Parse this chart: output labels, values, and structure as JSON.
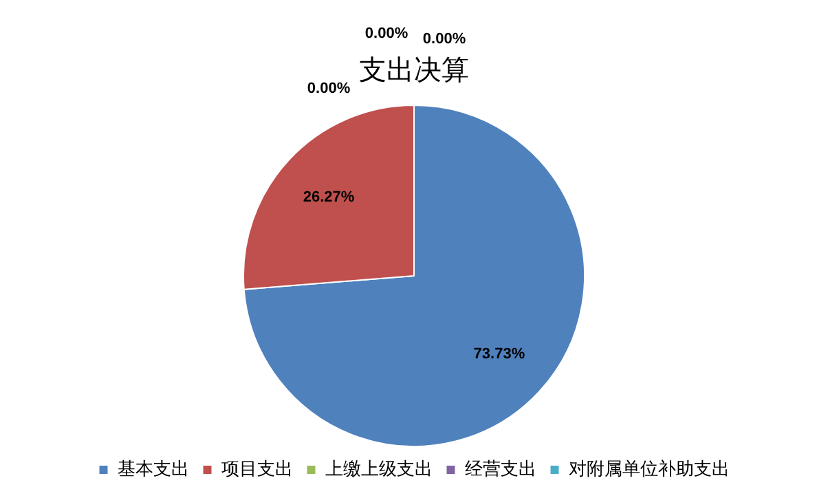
{
  "chart_data": {
    "type": "pie",
    "title": "支出决算",
    "categories": [
      "基本支出",
      "项目支出",
      "上缴上级支出",
      "经营支出",
      "对附属单位补助支出"
    ],
    "values": [
      73.73,
      26.27,
      0,
      0,
      0
    ],
    "colors": [
      "#4f81bd",
      "#c0504d",
      "#9bbb59",
      "#8064a2",
      "#4bacc6"
    ],
    "value_labels": [
      "73.73%",
      "26.27%",
      "0.00%",
      "0.00%",
      "0.00%"
    ],
    "legend": "bottom"
  }
}
